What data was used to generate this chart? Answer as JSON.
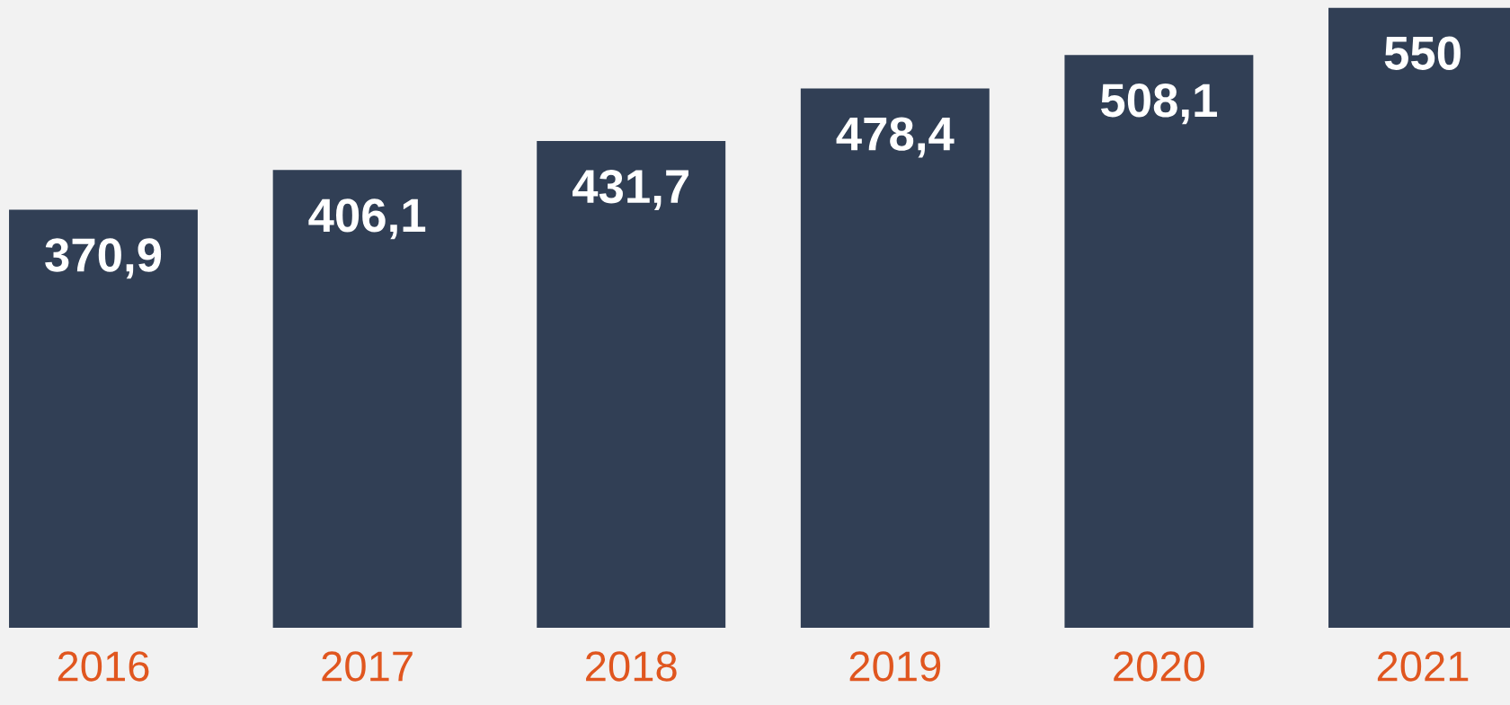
{
  "chart_data": {
    "type": "bar",
    "categories": [
      "2016",
      "2017",
      "2018",
      "2019",
      "2020",
      "2021"
    ],
    "values": [
      370.9,
      406.1,
      431.7,
      478.4,
      508.1,
      550
    ],
    "value_labels": [
      "370,9",
      "406,1",
      "431,7",
      "478,4",
      "508,1",
      "550"
    ],
    "color": "#313f55",
    "grid": false,
    "legend": false
  }
}
